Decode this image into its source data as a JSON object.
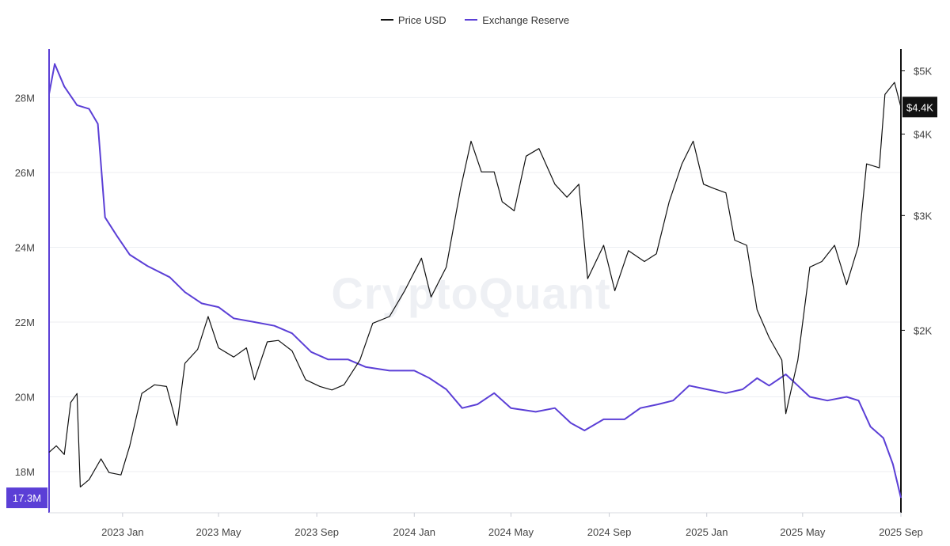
{
  "legend": {
    "price_label": "Price USD",
    "reserve_label": "Exchange Reserve"
  },
  "watermark": "CryptoQuant",
  "badges": {
    "left_value": "17.3M",
    "right_value": "$4.4K"
  },
  "colors": {
    "price": "#111111",
    "reserve": "#5b3fd6",
    "grid": "#eceef2",
    "badge_right": "#111111"
  },
  "chart_data": {
    "type": "line",
    "title": "",
    "xlabel": "",
    "x_ticks": [
      "2023 Jan",
      "2023 May",
      "2023 Sep",
      "2024 Jan",
      "2024 May",
      "2024 Sep",
      "2025 Jan",
      "2025 May",
      "2025 Sep"
    ],
    "x_range": [
      "2022-10-01",
      "2025-09-01"
    ],
    "y_left": {
      "label": "",
      "ticks": [
        "18M",
        "20M",
        "22M",
        "24M",
        "26M",
        "28M"
      ],
      "tick_values": [
        18,
        20,
        22,
        24,
        26,
        28
      ],
      "range": [
        16.9,
        29.3
      ],
      "unit": "M"
    },
    "y_right": {
      "label": "",
      "scale": "log",
      "ticks": [
        "$2K",
        "$3K",
        "$4K",
        "$5K"
      ],
      "tick_values": [
        2000,
        3000,
        4000,
        5000
      ],
      "range": [
        1050,
        5400
      ]
    },
    "series": [
      {
        "name": "Exchange Reserve",
        "axis": "left",
        "points": [
          [
            "2022-10-01",
            28.1
          ],
          [
            "2022-10-08",
            28.9
          ],
          [
            "2022-10-20",
            28.3
          ],
          [
            "2022-11-05",
            27.8
          ],
          [
            "2022-11-20",
            27.7
          ],
          [
            "2022-12-01",
            27.3
          ],
          [
            "2022-12-10",
            24.8
          ],
          [
            "2022-12-25",
            24.3
          ],
          [
            "2023-01-10",
            23.8
          ],
          [
            "2023-02-01",
            23.5
          ],
          [
            "2023-03-01",
            23.2
          ],
          [
            "2023-03-20",
            22.8
          ],
          [
            "2023-04-10",
            22.5
          ],
          [
            "2023-05-01",
            22.4
          ],
          [
            "2023-05-20",
            22.1
          ],
          [
            "2023-06-15",
            22.0
          ],
          [
            "2023-07-10",
            21.9
          ],
          [
            "2023-08-01",
            21.7
          ],
          [
            "2023-08-25",
            21.2
          ],
          [
            "2023-09-15",
            21.0
          ],
          [
            "2023-10-10",
            21.0
          ],
          [
            "2023-11-01",
            20.8
          ],
          [
            "2023-12-01",
            20.7
          ],
          [
            "2024-01-01",
            20.7
          ],
          [
            "2024-01-20",
            20.5
          ],
          [
            "2024-02-10",
            20.2
          ],
          [
            "2024-03-01",
            19.7
          ],
          [
            "2024-03-20",
            19.8
          ],
          [
            "2024-04-10",
            20.1
          ],
          [
            "2024-05-01",
            19.7
          ],
          [
            "2024-06-01",
            19.6
          ],
          [
            "2024-06-25",
            19.7
          ],
          [
            "2024-07-15",
            19.3
          ],
          [
            "2024-08-01",
            19.1
          ],
          [
            "2024-08-25",
            19.4
          ],
          [
            "2024-09-20",
            19.4
          ],
          [
            "2024-10-10",
            19.7
          ],
          [
            "2024-11-01",
            19.8
          ],
          [
            "2024-11-20",
            19.9
          ],
          [
            "2024-12-10",
            20.3
          ],
          [
            "2025-01-01",
            20.2
          ],
          [
            "2025-01-25",
            20.1
          ],
          [
            "2025-02-15",
            20.2
          ],
          [
            "2025-03-05",
            20.5
          ],
          [
            "2025-03-20",
            20.3
          ],
          [
            "2025-04-10",
            20.6
          ],
          [
            "2025-04-25",
            20.3
          ],
          [
            "2025-05-10",
            20.0
          ],
          [
            "2025-06-01",
            19.9
          ],
          [
            "2025-06-25",
            20.0
          ],
          [
            "2025-07-10",
            19.9
          ],
          [
            "2025-07-25",
            19.2
          ],
          [
            "2025-08-10",
            18.9
          ],
          [
            "2025-08-22",
            18.2
          ],
          [
            "2025-09-01",
            17.3
          ]
        ]
      },
      {
        "name": "Price USD",
        "axis": "right",
        "points": [
          [
            "2022-10-01",
            1300
          ],
          [
            "2022-10-10",
            1330
          ],
          [
            "2022-10-20",
            1290
          ],
          [
            "2022-10-28",
            1550
          ],
          [
            "2022-11-05",
            1600
          ],
          [
            "2022-11-09",
            1150
          ],
          [
            "2022-11-20",
            1180
          ],
          [
            "2022-12-05",
            1270
          ],
          [
            "2022-12-15",
            1210
          ],
          [
            "2022-12-30",
            1200
          ],
          [
            "2023-01-10",
            1330
          ],
          [
            "2023-01-25",
            1600
          ],
          [
            "2023-02-10",
            1650
          ],
          [
            "2023-02-25",
            1640
          ],
          [
            "2023-03-10",
            1430
          ],
          [
            "2023-03-20",
            1780
          ],
          [
            "2023-04-05",
            1870
          ],
          [
            "2023-04-18",
            2100
          ],
          [
            "2023-05-01",
            1880
          ],
          [
            "2023-05-20",
            1820
          ],
          [
            "2023-06-05",
            1880
          ],
          [
            "2023-06-15",
            1680
          ],
          [
            "2023-07-01",
            1920
          ],
          [
            "2023-07-15",
            1930
          ],
          [
            "2023-08-01",
            1860
          ],
          [
            "2023-08-18",
            1680
          ],
          [
            "2023-09-05",
            1640
          ],
          [
            "2023-09-20",
            1620
          ],
          [
            "2023-10-05",
            1650
          ],
          [
            "2023-10-25",
            1800
          ],
          [
            "2023-11-10",
            2050
          ],
          [
            "2023-12-01",
            2100
          ],
          [
            "2023-12-20",
            2300
          ],
          [
            "2024-01-10",
            2580
          ],
          [
            "2024-01-22",
            2250
          ],
          [
            "2024-02-10",
            2500
          ],
          [
            "2024-02-28",
            3300
          ],
          [
            "2024-03-12",
            3900
          ],
          [
            "2024-03-25",
            3500
          ],
          [
            "2024-04-10",
            3500
          ],
          [
            "2024-04-20",
            3150
          ],
          [
            "2024-05-05",
            3050
          ],
          [
            "2024-05-20",
            3700
          ],
          [
            "2024-06-05",
            3800
          ],
          [
            "2024-06-25",
            3350
          ],
          [
            "2024-07-10",
            3200
          ],
          [
            "2024-07-25",
            3350
          ],
          [
            "2024-08-05",
            2400
          ],
          [
            "2024-08-25",
            2700
          ],
          [
            "2024-09-08",
            2300
          ],
          [
            "2024-09-25",
            2650
          ],
          [
            "2024-10-15",
            2550
          ],
          [
            "2024-10-30",
            2620
          ],
          [
            "2024-11-15",
            3150
          ],
          [
            "2024-12-01",
            3600
          ],
          [
            "2024-12-15",
            3900
          ],
          [
            "2024-12-28",
            3350
          ],
          [
            "2025-01-10",
            3300
          ],
          [
            "2025-01-25",
            3250
          ],
          [
            "2025-02-05",
            2750
          ],
          [
            "2025-02-20",
            2700
          ],
          [
            "2025-03-05",
            2150
          ],
          [
            "2025-03-20",
            1950
          ],
          [
            "2025-04-05",
            1800
          ],
          [
            "2025-04-10",
            1490
          ],
          [
            "2025-04-25",
            1800
          ],
          [
            "2025-05-10",
            2500
          ],
          [
            "2025-05-25",
            2550
          ],
          [
            "2025-06-10",
            2700
          ],
          [
            "2025-06-25",
            2350
          ],
          [
            "2025-07-10",
            2700
          ],
          [
            "2025-07-20",
            3600
          ],
          [
            "2025-08-05",
            3550
          ],
          [
            "2025-08-12",
            4600
          ],
          [
            "2025-08-24",
            4800
          ],
          [
            "2025-09-01",
            4400
          ]
        ]
      }
    ]
  }
}
